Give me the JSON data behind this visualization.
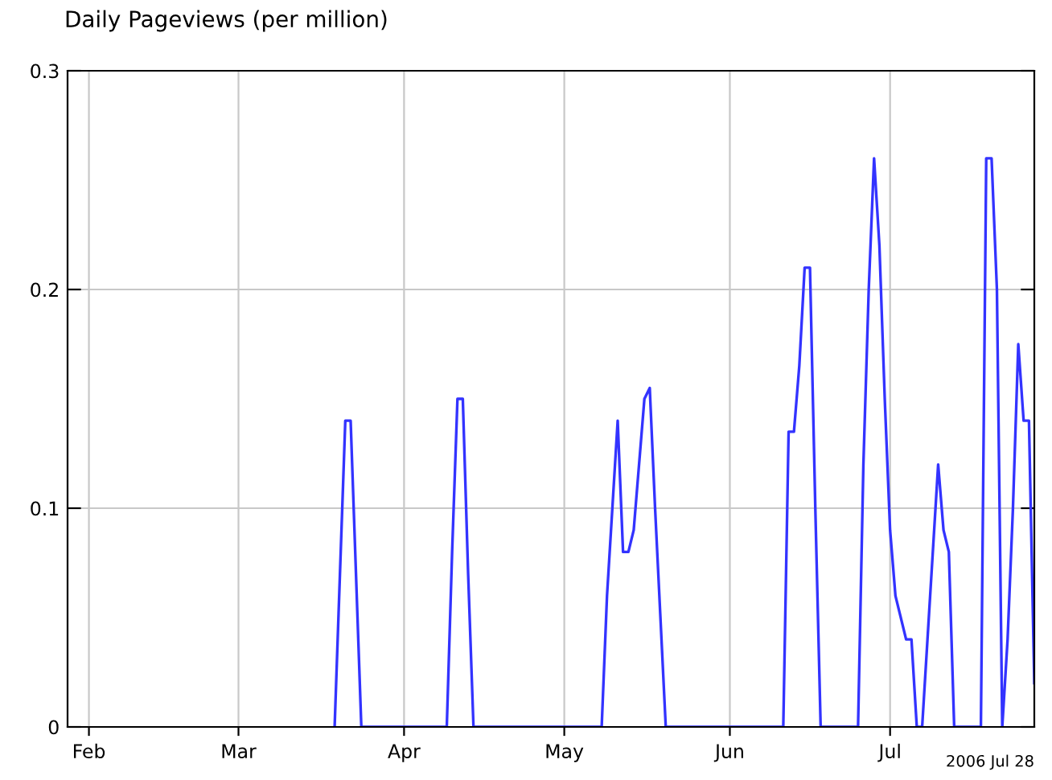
{
  "chart_data": {
    "type": "line",
    "title": "Daily Pageviews (per million)",
    "annotations": [
      "2006 Jul 28"
    ],
    "x": [
      "2006-03-19",
      "2006-03-20",
      "2006-03-21",
      "2006-03-22",
      "2006-03-23",
      "2006-03-24",
      "2006-04-09",
      "2006-04-10",
      "2006-04-11",
      "2006-04-12",
      "2006-04-13",
      "2006-04-14",
      "2006-05-08",
      "2006-05-09",
      "2006-05-11",
      "2006-05-12",
      "2006-05-13",
      "2006-05-14",
      "2006-05-16",
      "2006-05-17",
      "2006-05-18",
      "2006-05-20",
      "2006-06-11",
      "2006-06-12",
      "2006-06-13",
      "2006-06-14",
      "2006-06-15",
      "2006-06-16",
      "2006-06-17",
      "2006-06-18",
      "2006-06-25",
      "2006-06-26",
      "2006-06-27",
      "2006-06-28",
      "2006-06-29",
      "2006-06-30",
      "2006-07-01",
      "2006-07-02",
      "2006-07-04",
      "2006-07-05",
      "2006-07-06",
      "2006-07-07",
      "2006-07-08",
      "2006-07-09",
      "2006-07-10",
      "2006-07-11",
      "2006-07-12",
      "2006-07-13",
      "2006-07-18",
      "2006-07-19",
      "2006-07-20",
      "2006-07-21",
      "2006-07-22",
      "2006-07-23",
      "2006-07-24",
      "2006-07-25",
      "2006-07-26",
      "2006-07-27",
      "2006-07-28"
    ],
    "series": [
      {
        "color": "#3333ff",
        "values": [
          0,
          0.07,
          0.14,
          0.14,
          0.07,
          0,
          0,
          0.08,
          0.15,
          0.15,
          0.07,
          0,
          0,
          0.06,
          0.14,
          0.08,
          0.08,
          0.09,
          0.15,
          0.155,
          0.1,
          0,
          0,
          0.135,
          0.135,
          0.165,
          0.21,
          0.21,
          0.1,
          0,
          0,
          0.12,
          0.2,
          0.26,
          0.22,
          0.15,
          0.09,
          0.06,
          0.04,
          0.04,
          0,
          0,
          0.04,
          0.08,
          0.12,
          0.09,
          0.08,
          0,
          0,
          0.26,
          0.26,
          0.2,
          0,
          0.04,
          0.1,
          0.175,
          0.14,
          0.14,
          0.02
        ]
      }
    ],
    "xlim": [
      "2006-01-28",
      "2006-07-28"
    ],
    "xticks": [
      {
        "value": "2006-02-01",
        "label": "Feb"
      },
      {
        "value": "2006-03-01",
        "label": "Mar"
      },
      {
        "value": "2006-04-01",
        "label": "Apr"
      },
      {
        "value": "2006-05-01",
        "label": "May"
      },
      {
        "value": "2006-06-01",
        "label": "Jun"
      },
      {
        "value": "2006-07-01",
        "label": "Jul"
      }
    ],
    "ylim": [
      0,
      0.3
    ],
    "yticks": [
      {
        "value": 0,
        "label": "0"
      },
      0.1,
      0.2,
      0.3
    ],
    "grid": true,
    "marker": "none",
    "line_style": "solid"
  }
}
